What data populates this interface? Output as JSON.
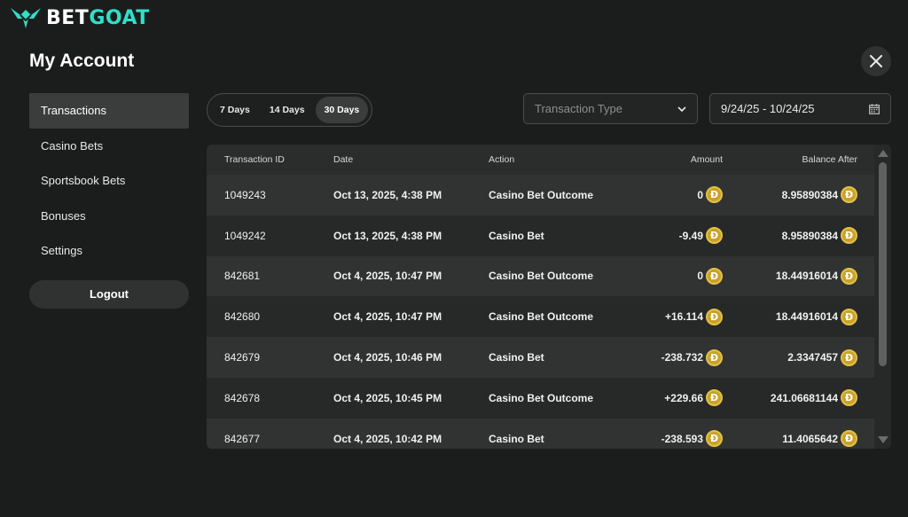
{
  "brand": {
    "part1": "BET",
    "part2": "GOAT",
    "accent": "#2ee0c8"
  },
  "page_title": "My Account",
  "sidebar": {
    "items": [
      {
        "label": "Transactions",
        "active": true
      },
      {
        "label": "Casino Bets"
      },
      {
        "label": "Sportsbook Bets"
      },
      {
        "label": "Bonuses"
      },
      {
        "label": "Settings"
      }
    ],
    "logout": "Logout"
  },
  "filters": {
    "days": [
      {
        "label": "7 Days"
      },
      {
        "label": "14 Days"
      },
      {
        "label": "30 Days",
        "active": true
      }
    ],
    "transaction_type_placeholder": "Transaction Type",
    "date_range": "9/24/25 - 10/24/25"
  },
  "table": {
    "headers": [
      "Transaction ID",
      "Date",
      "Action",
      "Amount",
      "Balance After"
    ],
    "coin_icon": "doge-coin-icon",
    "coin_symbol": "Ð",
    "rows": [
      {
        "id": "1049243",
        "date": "Oct 13, 2025, 4:38 PM",
        "action": "Casino Bet Outcome",
        "amount": "0",
        "balance": "8.95890384"
      },
      {
        "id": "1049242",
        "date": "Oct 13, 2025, 4:38 PM",
        "action": "Casino Bet",
        "amount": "-9.49",
        "balance": "8.95890384"
      },
      {
        "id": "842681",
        "date": "Oct 4, 2025, 10:47 PM",
        "action": "Casino Bet Outcome",
        "amount": "0",
        "balance": "18.44916014"
      },
      {
        "id": "842680",
        "date": "Oct 4, 2025, 10:47 PM",
        "action": "Casino Bet Outcome",
        "amount": "+16.114",
        "balance": "18.44916014"
      },
      {
        "id": "842679",
        "date": "Oct 4, 2025, 10:46 PM",
        "action": "Casino Bet",
        "amount": "-238.732",
        "balance": "2.3347457"
      },
      {
        "id": "842678",
        "date": "Oct 4, 2025, 10:45 PM",
        "action": "Casino Bet Outcome",
        "amount": "+229.66",
        "balance": "241.06681144"
      },
      {
        "id": "842677",
        "date": "Oct 4, 2025, 10:42 PM",
        "action": "Casino Bet",
        "amount": "-238.593",
        "balance": "11.4065642"
      }
    ]
  }
}
